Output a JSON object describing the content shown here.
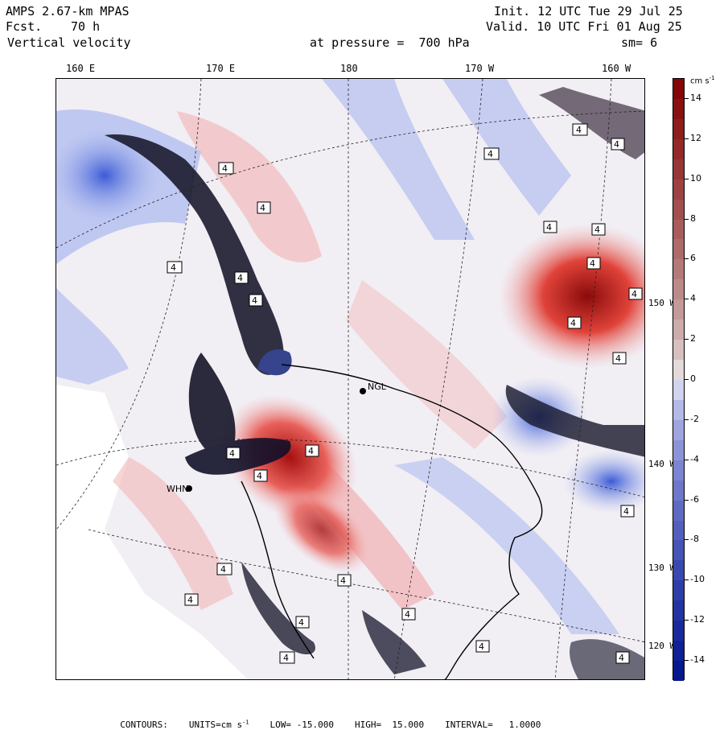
{
  "header": {
    "model": "AMPS 2.67-km MPAS",
    "forecast_label": "Fcst.",
    "forecast_value": "70 h",
    "field": "Vertical velocity",
    "init": "Init. 12 UTC Tue 29 Jul 25",
    "valid": "Valid. 10 UTC Fri 01 Aug 25",
    "pressure": "at pressure =  700 hPa",
    "smoothing": "sm= 6"
  },
  "map": {
    "longitude_labels": [
      "160 E",
      "170 E",
      "180",
      "170 W",
      "160 W"
    ],
    "latitude_labels": [
      "150 W",
      "140 W",
      "130 W",
      "120 W"
    ],
    "station_labels": [
      "NGL",
      "WHN"
    ],
    "contour_label": "4",
    "colors": {
      "strong_down": "#0a1a8c",
      "down": "#3b5bd6",
      "weak_down": "#aab8ef",
      "neutral": "#f4f0f0",
      "weak_up": "#f3b3b3",
      "up": "#e0433a",
      "strong_up": "#8a0b0b"
    }
  },
  "colorbar": {
    "unit": "cm s",
    "unit_exp": "-1",
    "labels": [
      "14",
      "12",
      "10",
      "8",
      "6",
      "4",
      "2",
      "0",
      "-2",
      "-4",
      "-6",
      "-8",
      "-10",
      "-12",
      "-14"
    ],
    "min": -15,
    "max": 15
  },
  "footer": {
    "contours": "CONTOURS:",
    "units": "UNITS=cm s",
    "units_exp": "-1",
    "low": "LOW= -15.000",
    "high": "HIGH=  15.000",
    "interval": "INTERVAL=   1.0000"
  }
}
